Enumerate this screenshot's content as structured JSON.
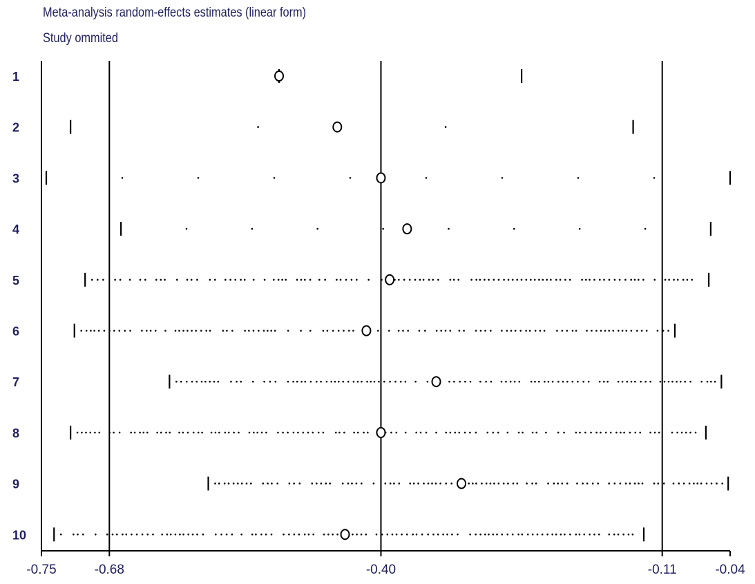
{
  "chart_data": {
    "type": "scatter",
    "title": "Meta-analysis random-effects estimates (linear form)",
    "subtitle": "Study ommited",
    "x_ticks": [
      -0.75,
      -0.68,
      -0.4,
      -0.11,
      -0.04
    ],
    "x_tick_labels": [
      "-0.75",
      "-0.68",
      "-0.40",
      "-0.11",
      "-0.04"
    ],
    "reference_lines": [
      -0.68,
      -0.4,
      -0.11
    ],
    "xlim": [
      -0.75,
      -0.04
    ],
    "grid": false,
    "studies": [
      {
        "label": "1",
        "estimate": -0.505,
        "lower": -0.505,
        "upper": -0.255
      },
      {
        "label": "2",
        "estimate": -0.445,
        "lower": -0.72,
        "upper": -0.14
      },
      {
        "label": "3",
        "estimate": -0.4,
        "lower": -0.745,
        "upper": -0.04
      },
      {
        "label": "4",
        "estimate": -0.373,
        "lower": -0.668,
        "upper": -0.06
      },
      {
        "label": "5",
        "estimate": -0.391,
        "lower": -0.705,
        "upper": -0.062
      },
      {
        "label": "6",
        "estimate": -0.415,
        "lower": -0.716,
        "upper": -0.097
      },
      {
        "label": "7",
        "estimate": -0.343,
        "lower": -0.618,
        "upper": -0.049
      },
      {
        "label": "8",
        "estimate": -0.4,
        "lower": -0.72,
        "upper": -0.065
      },
      {
        "label": "9",
        "estimate": -0.317,
        "lower": -0.578,
        "upper": -0.042
      },
      {
        "label": "10",
        "estimate": -0.437,
        "lower": -0.737,
        "upper": -0.129
      }
    ]
  }
}
